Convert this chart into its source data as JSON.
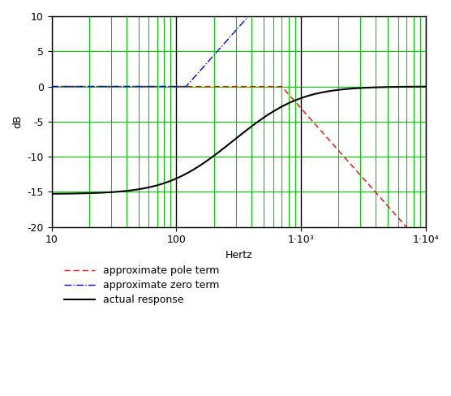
{
  "title": "",
  "xlabel": "Hertz",
  "ylabel": "dB",
  "xlim": [
    10,
    10000
  ],
  "ylim": [
    -20,
    10
  ],
  "yticks": [
    -20,
    -15,
    -10,
    -5,
    0,
    5,
    10
  ],
  "xticks_major": [
    10,
    100,
    1000,
    10000
  ],
  "xtick_labels": [
    "10",
    "100",
    "1·10³",
    "1·10⁴"
  ],
  "f_zero": 120,
  "f_pole": 700,
  "zero_clip_freq": 500,
  "grid_major_color": "#000000",
  "grid_minor_color": "#00cc00",
  "grid_horiz_color": "#00cc00",
  "line_pole_color": "#ff0000",
  "line_zero_color": "#0000ff",
  "line_actual_color": "#000000",
  "legend_labels": [
    "approximate pole term",
    "approximate zero term",
    "actual response"
  ],
  "background_color": "#ffffff",
  "figsize": [
    5.56,
    4.88
  ],
  "dpi": 100
}
